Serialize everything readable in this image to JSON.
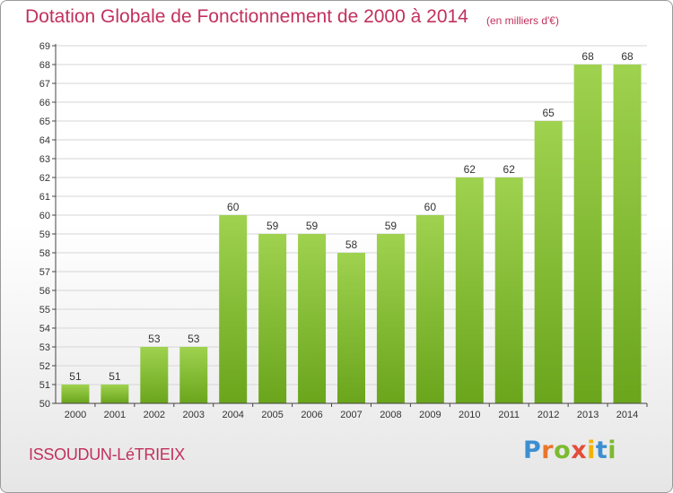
{
  "title": "Dotation Globale de Fonctionnement de 2000 à 2014",
  "subtitle": "(en milliers d'€)",
  "commune": "ISSOUDUN-LéTRIEIX",
  "logo": {
    "letters": [
      "P",
      "r",
      "o",
      "x",
      "i",
      "t",
      "i"
    ],
    "colors": [
      "#3b8fd1",
      "#e8762c",
      "#7cba2f",
      "#e24d3a",
      "#f0b400",
      "#3b8fd1",
      "#7cba2f"
    ]
  },
  "colors": {
    "title": "#c2305e",
    "bar_light": "#9fd24f",
    "bar_dark": "#6aa51c",
    "grid": "#d6d6d6",
    "axis": "#444444"
  },
  "chart_data": {
    "type": "bar",
    "categories": [
      "2000",
      "2001",
      "2002",
      "2003",
      "2004",
      "2005",
      "2006",
      "2007",
      "2008",
      "2009",
      "2010",
      "2011",
      "2012",
      "2013",
      "2014"
    ],
    "values": [
      51,
      51,
      53,
      53,
      60,
      59,
      59,
      58,
      59,
      60,
      62,
      62,
      65,
      68,
      68
    ],
    "ylim": [
      50,
      69
    ],
    "yticks": [
      50,
      51,
      52,
      53,
      54,
      55,
      56,
      57,
      58,
      59,
      60,
      61,
      62,
      63,
      64,
      65,
      66,
      67,
      68,
      69
    ],
    "title": "Dotation Globale de Fonctionnement de 2000 à 2014",
    "xlabel": "",
    "ylabel": "",
    "grid": true
  }
}
